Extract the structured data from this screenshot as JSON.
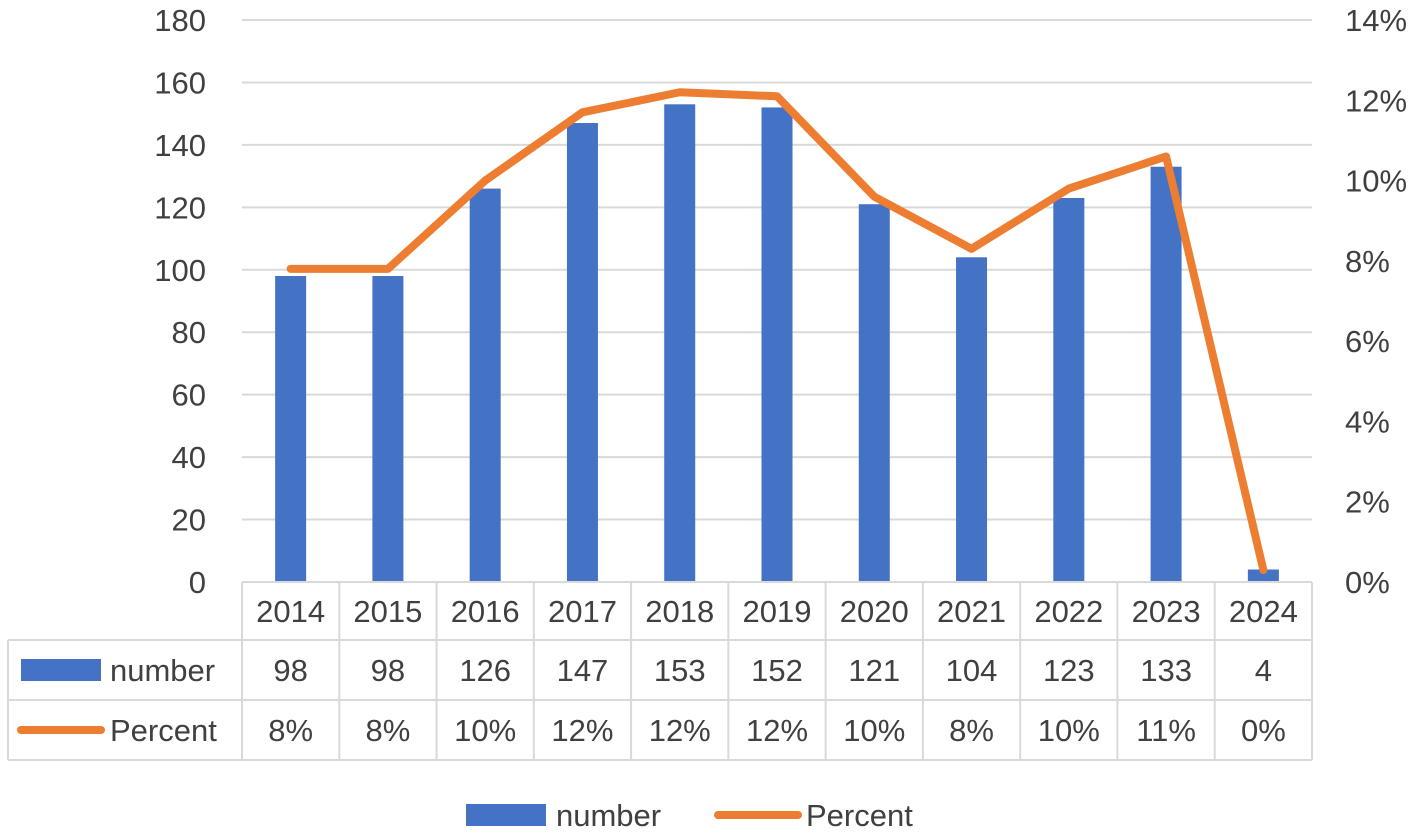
{
  "chart_data": {
    "type": "bar",
    "categories": [
      "2014",
      "2015",
      "2016",
      "2017",
      "2018",
      "2019",
      "2020",
      "2021",
      "2022",
      "2023",
      "2024"
    ],
    "series": [
      {
        "name": "number",
        "type": "bar",
        "axis": "left",
        "values": [
          98,
          98,
          126,
          147,
          153,
          152,
          121,
          104,
          123,
          133,
          4
        ],
        "labels": [
          "98",
          "98",
          "126",
          "147",
          "153",
          "152",
          "121",
          "104",
          "123",
          "133",
          "4"
        ]
      },
      {
        "name": "Percent",
        "type": "line",
        "axis": "right",
        "values": [
          7.8,
          7.8,
          10.0,
          11.7,
          12.2,
          12.1,
          9.6,
          8.3,
          9.8,
          10.6,
          0.3
        ],
        "labels": [
          "8%",
          "8%",
          "10%",
          "12%",
          "12%",
          "12%",
          "10%",
          "8%",
          "10%",
          "11%",
          "0%"
        ]
      }
    ],
    "y_left": {
      "min": 0,
      "max": 180,
      "step": 20,
      "ticks": [
        "0",
        "20",
        "40",
        "60",
        "80",
        "100",
        "120",
        "140",
        "160",
        "180"
      ]
    },
    "y_right": {
      "min": 0,
      "max": 14,
      "step": 2,
      "ticks": [
        "0%",
        "2%",
        "4%",
        "6%",
        "8%",
        "10%",
        "12%",
        "14%"
      ]
    },
    "data_table": true,
    "grid": true,
    "legend": "bottom",
    "colors": {
      "bar": "#4472C4",
      "line": "#ED7D31",
      "grid": "#D9D9D9",
      "text": "#404040"
    }
  }
}
